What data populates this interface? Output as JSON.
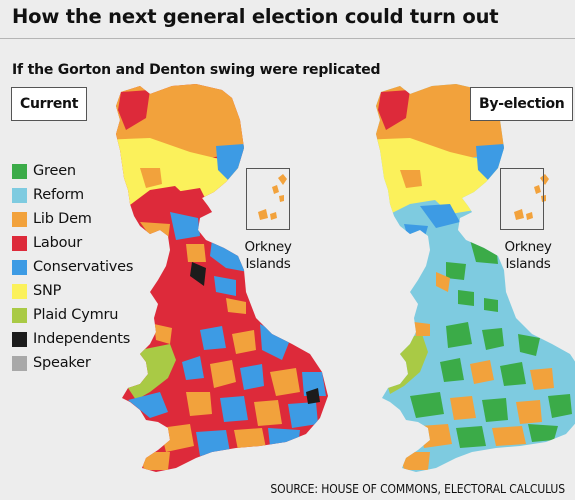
{
  "header": {
    "title": "How the next general election could turn out",
    "subtitle": "If the Gorton and Denton swing were replicated"
  },
  "maps": {
    "current": {
      "label": "Current",
      "inset_line1": "Orkney",
      "inset_line2": "Islands"
    },
    "by_election": {
      "label": "By-election",
      "inset_line1": "Orkney",
      "inset_line2": "Islands"
    }
  },
  "legend": {
    "items": [
      {
        "label": "Green",
        "color": "#3bab48"
      },
      {
        "label": "Reform",
        "color": "#7ecbe0"
      },
      {
        "label": "Lib Dem",
        "color": "#f2a23c"
      },
      {
        "label": "Labour",
        "color": "#dd2a3a"
      },
      {
        "label": "Conservatives",
        "color": "#3d9be4"
      },
      {
        "label": "SNP",
        "color": "#fbf15b"
      },
      {
        "label": "Plaid Cymru",
        "color": "#a9ca45"
      },
      {
        "label": "Independents",
        "color": "#1c1c1c"
      },
      {
        "label": "Speaker",
        "color": "#a8a8a8"
      }
    ]
  },
  "footer": {
    "source": "SOURCE: HOUSE OF COMMONS, ELECTORAL CALCULUS"
  },
  "colors": {
    "background": "#ededed",
    "green": "#3bab48",
    "reform": "#7ecbe0",
    "lib_dem": "#f2a23c",
    "labour": "#dd2a3a",
    "conservative": "#3d9be4",
    "snp": "#fbf15b",
    "plaid": "#a9ca45",
    "independent": "#1c1c1c"
  }
}
